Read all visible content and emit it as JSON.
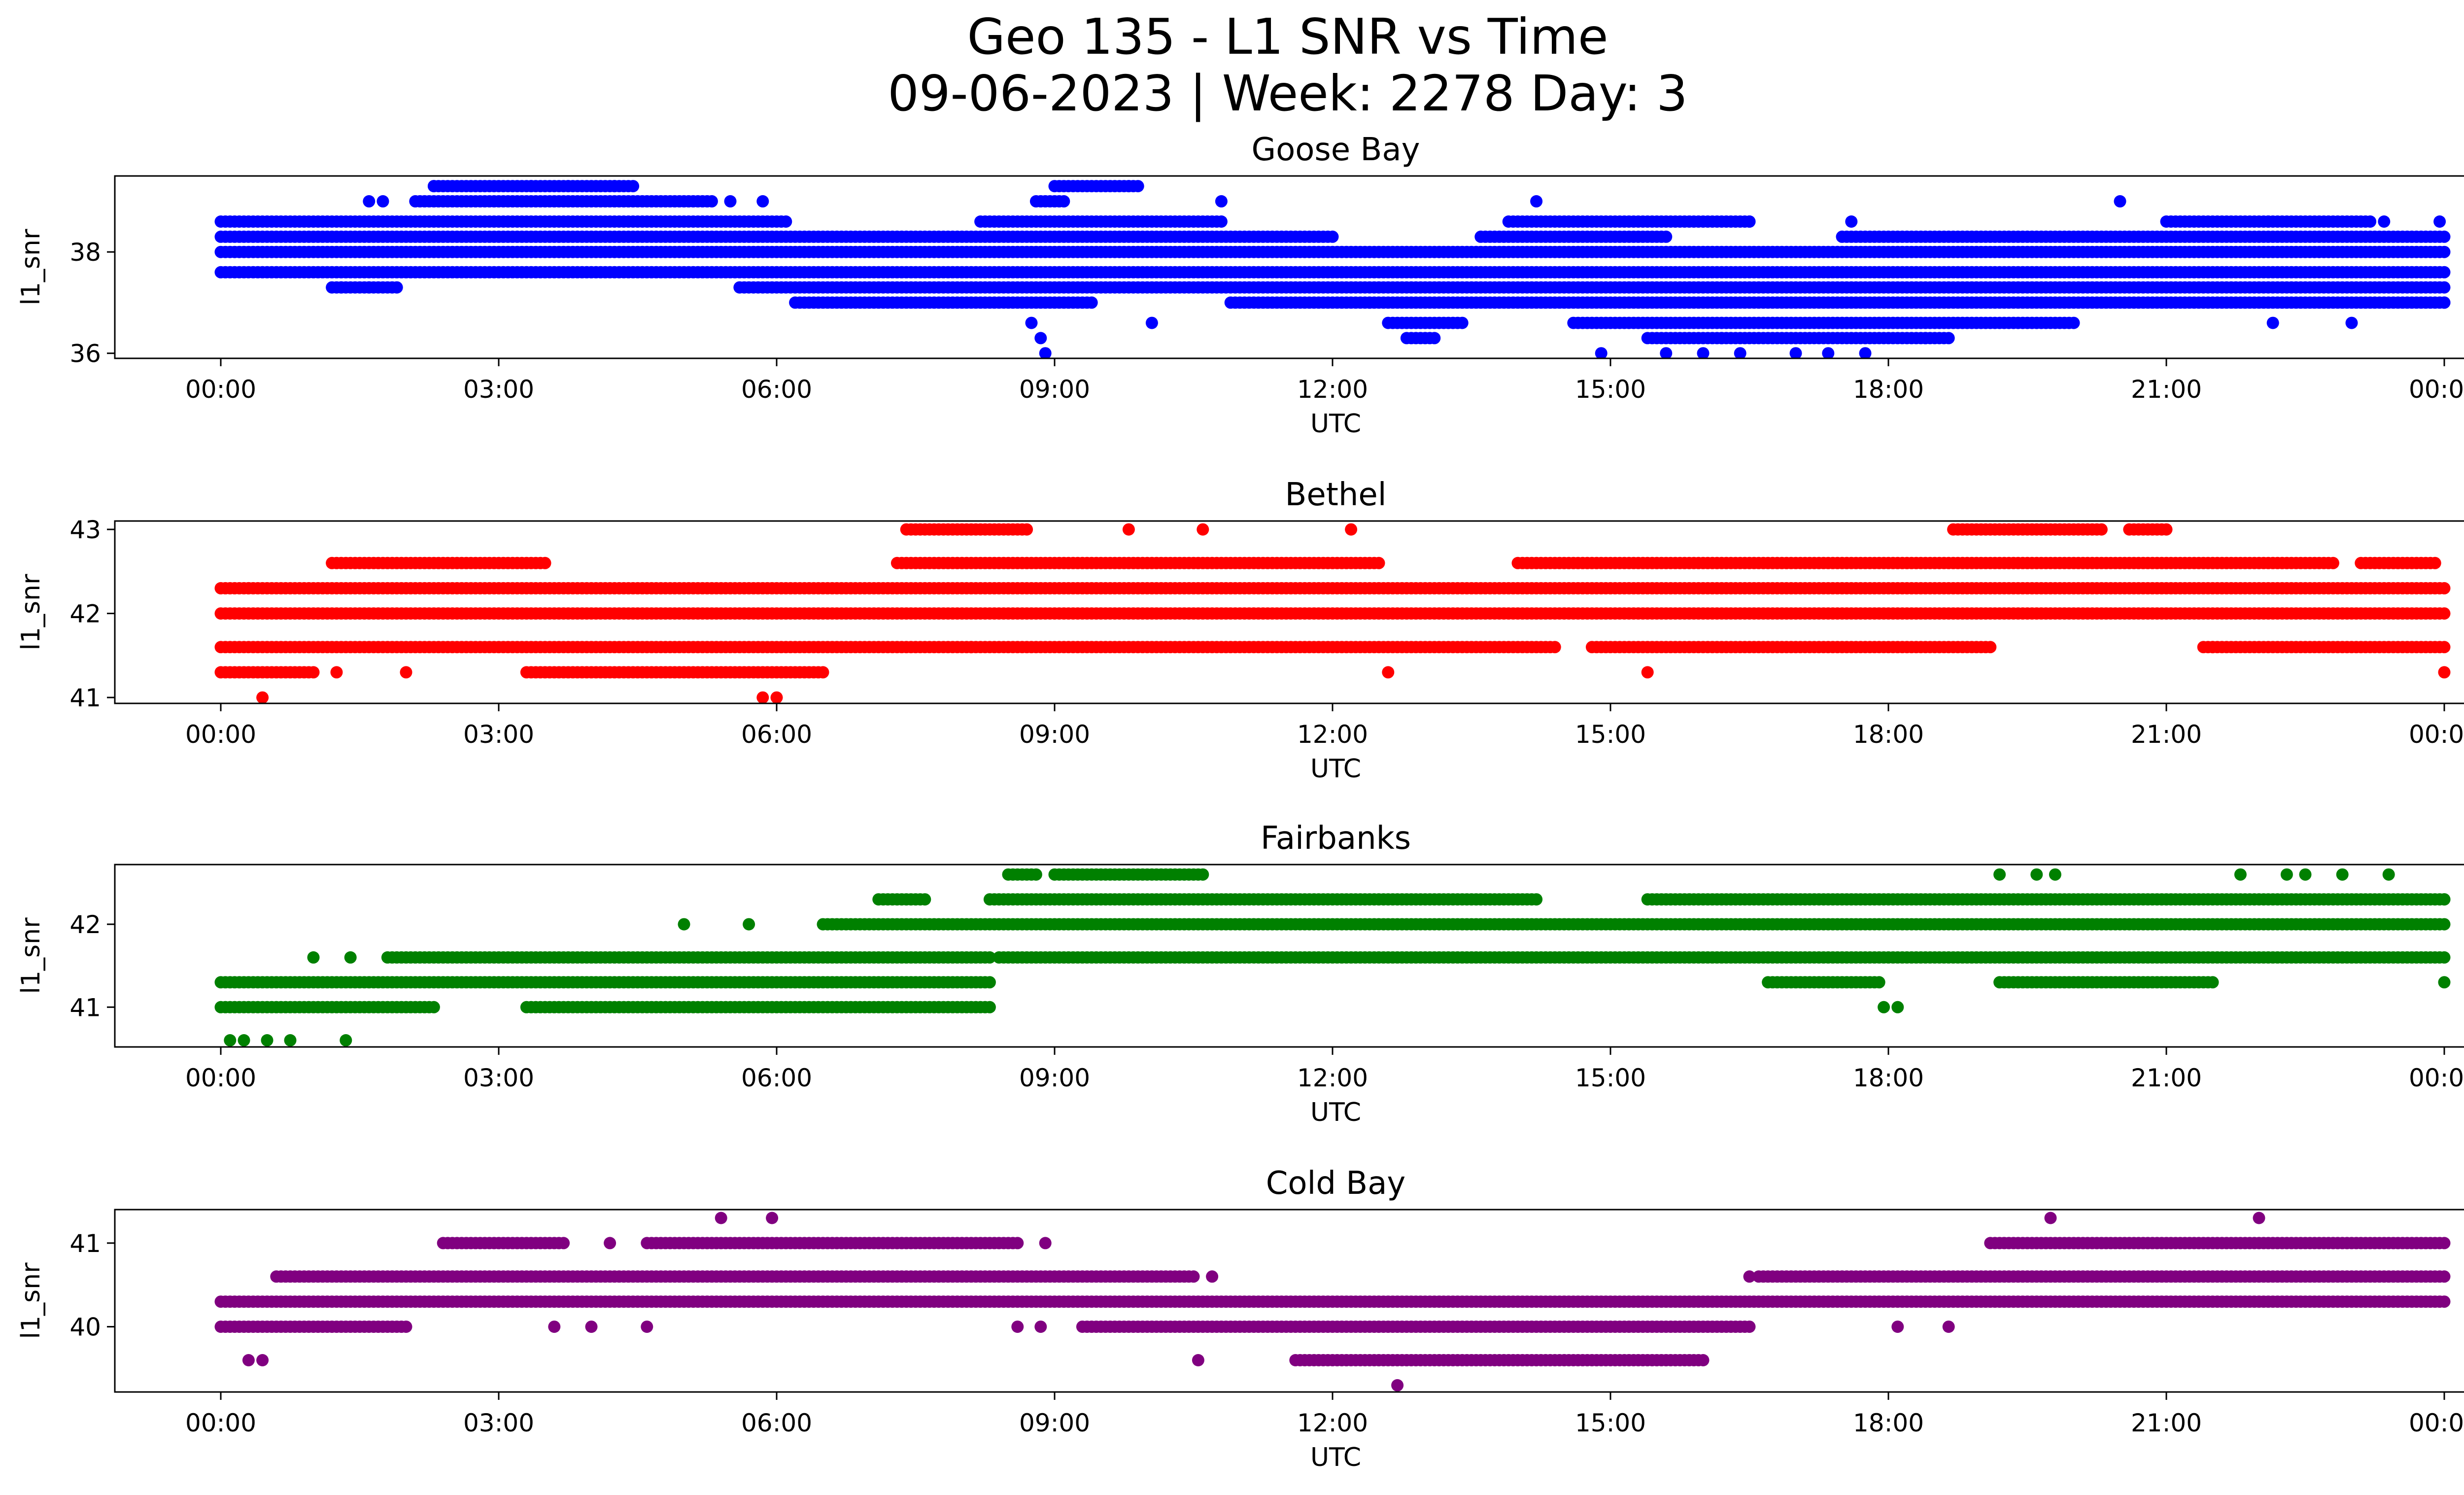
{
  "figure": {
    "title_line1": "Geo 135 - L1 SNR vs Time",
    "title_line2": "09-06-2023 | Week: 2278 Day: 3"
  },
  "chart_data": [
    {
      "type": "scatter",
      "title": "Goose Bay",
      "xlabel": "UTC",
      "ylabel": "l1_snr",
      "color": "#0000ff",
      "xlim": [
        "00:00",
        "24:00"
      ],
      "ylim": [
        35.9,
        39.5
      ],
      "yticks": [
        36,
        38
      ],
      "xticks": [
        "00:00",
        "03:00",
        "06:00",
        "09:00",
        "12:00",
        "15:00",
        "18:00",
        "21:00",
        "00:00"
      ],
      "levels": [
        36.0,
        36.3,
        36.6,
        37.0,
        37.3,
        37.6,
        38.0,
        38.3,
        38.6,
        39.0,
        39.3
      ],
      "series": [
        {
          "level": 37.6,
          "segments": [
            [
              0.0,
              24.0
            ]
          ]
        },
        {
          "level": 37.3,
          "segments": [
            [
              1.2,
              1.9
            ],
            [
              5.6,
              24.0
            ]
          ]
        },
        {
          "level": 37.0,
          "segments": [
            [
              6.2,
              9.4
            ],
            [
              10.9,
              12.4
            ],
            [
              12.4,
              24.0
            ]
          ]
        },
        {
          "level": 36.6,
          "segments": [
            [
              12.6,
              13.4
            ],
            [
              14.6,
              20.0
            ]
          ]
        },
        {
          "level": 36.3,
          "segments": [
            [
              12.8,
              13.1
            ],
            [
              15.4,
              18.6
            ]
          ]
        },
        {
          "level": 38.0,
          "segments": [
            [
              0.0,
              24.0
            ]
          ]
        },
        {
          "level": 38.3,
          "segments": [
            [
              0.0,
              12.0
            ],
            [
              13.6,
              15.6
            ],
            [
              17.5,
              24.0
            ]
          ]
        },
        {
          "level": 38.6,
          "segments": [
            [
              0.0,
              6.1
            ],
            [
              8.2,
              10.8
            ],
            [
              13.9,
              16.5
            ],
            [
              21.0,
              23.2
            ]
          ]
        },
        {
          "level": 39.0,
          "segments": [
            [
              2.1,
              5.3
            ],
            [
              8.8,
              9.1
            ]
          ]
        },
        {
          "level": 39.3,
          "segments": [
            [
              2.3,
              4.4
            ],
            [
              9.0,
              9.9
            ]
          ]
        }
      ],
      "points": [
        [
          1.6,
          39.0
        ],
        [
          1.75,
          39.0
        ],
        [
          2.3,
          39.3
        ],
        [
          3.35,
          39.3
        ],
        [
          3.75,
          39.3
        ],
        [
          4.25,
          39.3
        ],
        [
          4.45,
          39.3
        ],
        [
          5.5,
          39.0
        ],
        [
          5.85,
          39.0
        ],
        [
          1.3,
          37.3
        ],
        [
          1.6,
          37.3
        ],
        [
          8.75,
          36.6
        ],
        [
          8.85,
          36.3
        ],
        [
          8.9,
          36.0
        ],
        [
          10.05,
          36.6
        ],
        [
          9.8,
          39.3
        ],
        [
          10.8,
          39.0
        ],
        [
          14.2,
          39.0
        ],
        [
          14.9,
          36.0
        ],
        [
          15.6,
          36.0
        ],
        [
          16.0,
          36.0
        ],
        [
          16.4,
          36.0
        ],
        [
          16.2,
          36.3
        ],
        [
          17.0,
          36.0
        ],
        [
          17.35,
          36.0
        ],
        [
          17.75,
          36.0
        ],
        [
          18.4,
          36.3
        ],
        [
          18.65,
          36.3
        ],
        [
          20.5,
          39.0
        ],
        [
          22.15,
          36.6
        ],
        [
          23.0,
          36.6
        ],
        [
          16.5,
          38.6
        ],
        [
          17.6,
          38.6
        ],
        [
          22.1,
          38.6
        ],
        [
          23.35,
          38.6
        ],
        [
          23.95,
          38.6
        ],
        [
          24.0,
          37.0
        ]
      ]
    },
    {
      "type": "scatter",
      "title": "Bethel",
      "xlabel": "UTC",
      "ylabel": "l1_snr",
      "color": "#ff0000",
      "xlim": [
        "00:00",
        "24:00"
      ],
      "ylim": [
        40.93,
        43.1
      ],
      "yticks": [
        41,
        42,
        43
      ],
      "xticks": [
        "00:00",
        "03:00",
        "06:00",
        "09:00",
        "12:00",
        "15:00",
        "18:00",
        "21:00",
        "00:00"
      ],
      "levels": [
        41.0,
        41.3,
        41.6,
        42.0,
        42.3,
        42.6,
        43.0
      ],
      "series": [
        {
          "level": 42.0,
          "segments": [
            [
              0.0,
              24.0
            ]
          ]
        },
        {
          "level": 42.3,
          "segments": [
            [
              0.0,
              24.0
            ]
          ]
        },
        {
          "level": 41.6,
          "segments": [
            [
              0.0,
              14.4
            ],
            [
              14.8,
              19.1
            ],
            [
              21.4,
              24.0
            ]
          ]
        },
        {
          "level": 41.3,
          "segments": [
            [
              0.0,
              1.0
            ],
            [
              3.3,
              6.5
            ]
          ]
        },
        {
          "level": 42.6,
          "segments": [
            [
              1.2,
              3.5
            ],
            [
              7.3,
              12.5
            ],
            [
              14.0,
              22.8
            ],
            [
              23.1,
              23.9
            ]
          ]
        },
        {
          "level": 43.0,
          "segments": [
            [
              7.4,
              8.7
            ],
            [
              18.7,
              20.3
            ],
            [
              20.6,
              21.0
            ]
          ]
        }
      ],
      "points": [
        [
          0.45,
          41.0
        ],
        [
          5.85,
          41.0
        ],
        [
          6.0,
          41.0
        ],
        [
          1.25,
          41.3
        ],
        [
          2.0,
          41.3
        ],
        [
          12.6,
          41.3
        ],
        [
          15.4,
          41.3
        ],
        [
          24.0,
          41.3
        ],
        [
          0.3,
          42.3
        ],
        [
          9.8,
          43.0
        ],
        [
          10.6,
          43.0
        ],
        [
          12.2,
          43.0
        ],
        [
          8.1,
          41.6
        ],
        [
          21.5,
          41.6
        ]
      ]
    },
    {
      "type": "scatter",
      "title": "Fairbanks",
      "xlabel": "UTC",
      "ylabel": "l1_snr",
      "color": "#008000",
      "xlim": [
        "00:00",
        "24:00"
      ],
      "ylim": [
        40.52,
        42.72
      ],
      "yticks": [
        41,
        42
      ],
      "xticks": [
        "00:00",
        "03:00",
        "06:00",
        "09:00",
        "12:00",
        "15:00",
        "18:00",
        "21:00",
        "00:00"
      ],
      "levels": [
        40.6,
        41.0,
        41.3,
        41.6,
        42.0,
        42.3,
        42.6
      ],
      "series": [
        {
          "level": 41.3,
          "segments": [
            [
              0.0,
              8.3
            ],
            [
              16.7,
              17.9
            ],
            [
              19.2,
              21.5
            ]
          ]
        },
        {
          "level": 41.0,
          "segments": [
            [
              0.0,
              2.3
            ],
            [
              3.3,
              8.3
            ]
          ]
        },
        {
          "level": 41.6,
          "segments": [
            [
              1.8,
              8.3
            ],
            [
              8.4,
              24.0
            ]
          ]
        },
        {
          "level": 42.0,
          "segments": [
            [
              6.5,
              24.0
            ]
          ]
        },
        {
          "level": 42.3,
          "segments": [
            [
              7.1,
              7.6
            ],
            [
              8.3,
              14.2
            ],
            [
              15.4,
              24.0
            ]
          ]
        },
        {
          "level": 42.6,
          "segments": [
            [
              8.5,
              8.8
            ],
            [
              9.0,
              10.6
            ]
          ]
        }
      ],
      "points": [
        [
          0.1,
          40.6
        ],
        [
          0.25,
          40.6
        ],
        [
          0.5,
          40.6
        ],
        [
          0.75,
          40.6
        ],
        [
          1.35,
          40.6
        ],
        [
          1.0,
          41.6
        ],
        [
          1.4,
          41.6
        ],
        [
          17.95,
          41.0
        ],
        [
          18.1,
          41.0
        ],
        [
          5.0,
          42.0
        ],
        [
          5.7,
          42.0
        ],
        [
          19.2,
          42.6
        ],
        [
          19.6,
          42.6
        ],
        [
          19.8,
          42.6
        ],
        [
          21.8,
          42.6
        ],
        [
          22.3,
          42.6
        ],
        [
          22.5,
          42.6
        ],
        [
          22.9,
          42.6
        ],
        [
          23.4,
          42.6
        ],
        [
          24.0,
          42.3
        ],
        [
          24.0,
          41.3
        ]
      ]
    },
    {
      "type": "scatter",
      "title": "Cold Bay",
      "xlabel": "UTC",
      "ylabel": "l1_snr",
      "color": "#800080",
      "xlim": [
        "00:00",
        "24:00"
      ],
      "ylim": [
        39.22,
        41.4
      ],
      "yticks": [
        40,
        41
      ],
      "xticks": [
        "00:00",
        "03:00",
        "06:00",
        "09:00",
        "12:00",
        "15:00",
        "18:00",
        "21:00",
        "00:00"
      ],
      "levels": [
        39.3,
        39.6,
        40.0,
        40.3,
        40.6,
        41.0,
        41.3
      ],
      "series": [
        {
          "level": 40.3,
          "segments": [
            [
              0.0,
              24.0
            ]
          ]
        },
        {
          "level": 40.0,
          "segments": [
            [
              0.0,
              2.0
            ],
            [
              9.3,
              16.5
            ]
          ]
        },
        {
          "level": 40.6,
          "segments": [
            [
              0.6,
              10.5
            ],
            [
              16.6,
              24.0
            ]
          ]
        },
        {
          "level": 41.0,
          "segments": [
            [
              2.4,
              3.7
            ],
            [
              4.6,
              8.6
            ],
            [
              19.1,
              24.0
            ]
          ]
        },
        {
          "level": 39.6,
          "segments": [
            [
              11.6,
              16.0
            ]
          ]
        }
      ],
      "points": [
        [
          0.3,
          39.6
        ],
        [
          0.45,
          39.6
        ],
        [
          5.4,
          41.3
        ],
        [
          5.95,
          41.3
        ],
        [
          19.75,
          41.3
        ],
        [
          22.0,
          41.3
        ],
        [
          12.7,
          39.3
        ],
        [
          10.55,
          39.6
        ],
        [
          3.6,
          40.0
        ],
        [
          4.0,
          40.0
        ],
        [
          4.6,
          40.0
        ],
        [
          8.6,
          40.0
        ],
        [
          8.85,
          40.0
        ],
        [
          4.2,
          41.0
        ],
        [
          8.9,
          41.0
        ],
        [
          10.7,
          40.6
        ],
        [
          16.5,
          40.6
        ],
        [
          18.1,
          40.0
        ],
        [
          18.65,
          40.0
        ]
      ]
    }
  ]
}
